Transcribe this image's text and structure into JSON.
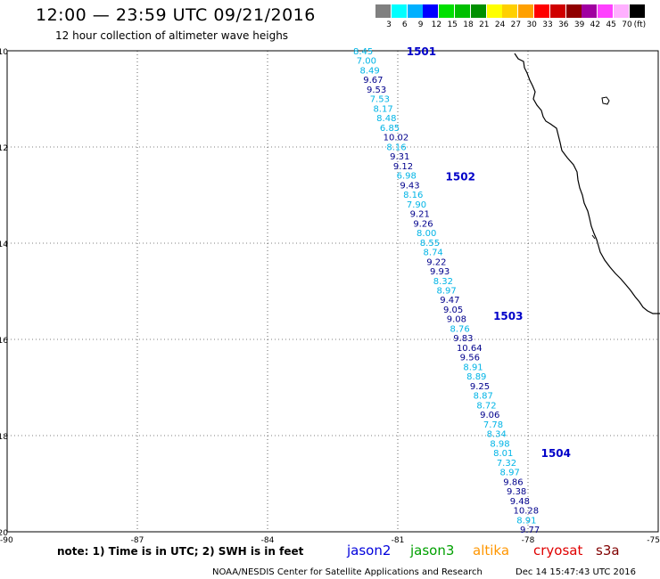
{
  "header": {
    "title": "12:00 — 23:59 UTC 09/21/2016",
    "subtitle": "12 hour collection of altimeter wave heighs"
  },
  "legend": {
    "unit": "(ft)",
    "scale": [
      {
        "label": "3",
        "color": "#808080"
      },
      {
        "label": "6",
        "color": "#00ffff"
      },
      {
        "label": "9",
        "color": "#00b0ff"
      },
      {
        "label": "12",
        "color": "#0000ff"
      },
      {
        "label": "15",
        "color": "#00e000"
      },
      {
        "label": "18",
        "color": "#00c000"
      },
      {
        "label": "21",
        "color": "#009000"
      },
      {
        "label": "24",
        "color": "#ffff00"
      },
      {
        "label": "27",
        "color": "#ffd000"
      },
      {
        "label": "30",
        "color": "#ffa000"
      },
      {
        "label": "33",
        "color": "#ff0000"
      },
      {
        "label": "36",
        "color": "#d00000"
      },
      {
        "label": "39",
        "color": "#900000"
      },
      {
        "label": "42",
        "color": "#a000a0"
      },
      {
        "label": "45",
        "color": "#ff40ff"
      },
      {
        "label": "70",
        "color": "#ffb0ff"
      },
      {
        "label": "",
        "color": "#000000"
      }
    ]
  },
  "map": {
    "lon_range": [
      -90,
      -75
    ],
    "lat_range": [
      10,
      20
    ],
    "lon_labels": [
      "-90",
      "-87",
      "-84",
      "-81",
      "-78",
      "-75"
    ],
    "lat_labels": [
      "10",
      "12",
      "14",
      "16",
      "18",
      "20"
    ],
    "colors": {
      "light_cyan": "#00b4e6",
      "dark_blue": "#00008c",
      "coast": "#000000"
    },
    "passes": [
      {
        "label": "1501",
        "lon": -80.8,
        "lat": 10.0
      },
      {
        "label": "1502",
        "lon": -79.9,
        "lat": 12.6
      },
      {
        "label": "1503",
        "lon": -78.8,
        "lat": 15.5
      },
      {
        "label": "1504",
        "lon": -77.7,
        "lat": 18.35
      }
    ],
    "swh": [
      {
        "v": "8.45",
        "c": "light"
      },
      {
        "v": "7.00",
        "c": "light"
      },
      {
        "v": "8.49",
        "c": "light"
      },
      {
        "v": "9.67",
        "c": "dark"
      },
      {
        "v": "9.53",
        "c": "dark"
      },
      {
        "v": "7.53",
        "c": "light"
      },
      {
        "v": "8.17",
        "c": "light"
      },
      {
        "v": "8.48",
        "c": "light"
      },
      {
        "v": "6.85",
        "c": "light"
      },
      {
        "v": "10.02",
        "c": "dark"
      },
      {
        "v": "8.16",
        "c": "light"
      },
      {
        "v": "9.31",
        "c": "dark"
      },
      {
        "v": "9.12",
        "c": "dark"
      },
      {
        "v": "6.98",
        "c": "light"
      },
      {
        "v": "9.43",
        "c": "dark"
      },
      {
        "v": "8.16",
        "c": "light"
      },
      {
        "v": "7.90",
        "c": "light"
      },
      {
        "v": "9.21",
        "c": "dark"
      },
      {
        "v": "9.26",
        "c": "dark"
      },
      {
        "v": "8.00",
        "c": "light"
      },
      {
        "v": "8.55",
        "c": "light"
      },
      {
        "v": "8.74",
        "c": "light"
      },
      {
        "v": "9.22",
        "c": "dark"
      },
      {
        "v": "9.93",
        "c": "dark"
      },
      {
        "v": "8.32",
        "c": "light"
      },
      {
        "v": "8.97",
        "c": "light"
      },
      {
        "v": "9.47",
        "c": "dark"
      },
      {
        "v": "9.05",
        "c": "dark"
      },
      {
        "v": "9.08",
        "c": "dark"
      },
      {
        "v": "8.76",
        "c": "light"
      },
      {
        "v": "9.83",
        "c": "dark"
      },
      {
        "v": "10.64",
        "c": "dark"
      },
      {
        "v": "9.56",
        "c": "dark"
      },
      {
        "v": "8.91",
        "c": "light"
      },
      {
        "v": "8.89",
        "c": "light"
      },
      {
        "v": "9.25",
        "c": "dark"
      },
      {
        "v": "8.87",
        "c": "light"
      },
      {
        "v": "8.72",
        "c": "light"
      },
      {
        "v": "9.06",
        "c": "dark"
      },
      {
        "v": "7.78",
        "c": "light"
      },
      {
        "v": "8.34",
        "c": "light"
      },
      {
        "v": "8.98",
        "c": "light"
      },
      {
        "v": "8.01",
        "c": "light"
      },
      {
        "v": "7.32",
        "c": "light"
      },
      {
        "v": "8.97",
        "c": "light"
      },
      {
        "v": "9.86",
        "c": "dark"
      },
      {
        "v": "9.38",
        "c": "dark"
      },
      {
        "v": "9.48",
        "c": "dark"
      },
      {
        "v": "10.28",
        "c": "dark"
      },
      {
        "v": "8.91",
        "c": "light"
      },
      {
        "v": "9.77",
        "c": "dark"
      }
    ]
  },
  "note": "note: 1) Time is in UTC; 2) SWH is in feet",
  "satellites": [
    {
      "name": "jason2",
      "color": "#0000dc"
    },
    {
      "name": "jason3",
      "color": "#00a000"
    },
    {
      "name": "altika",
      "color": "#ff9600"
    },
    {
      "name": "cryosat",
      "color": "#e00000"
    },
    {
      "name": "s3a",
      "color": "#800000"
    }
  ],
  "footer": {
    "credit": "NOAA/NESDIS Center for Satellite Applications and Research",
    "timestamp": "Dec 14 15:47:43 UTC 2016"
  }
}
